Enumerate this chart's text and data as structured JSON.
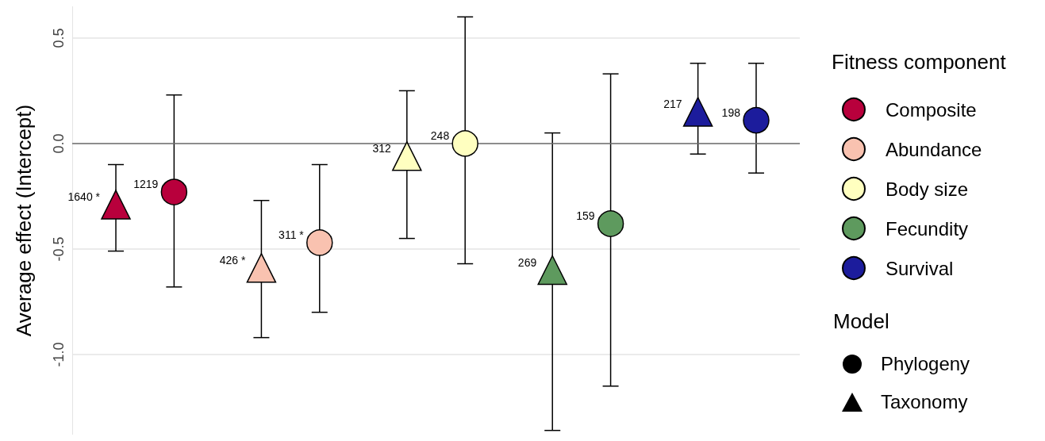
{
  "chart_data": {
    "type": "scatter",
    "ylabel": "Average effect (Intercept)",
    "legend_title": "Fitness component",
    "categories": [
      null,
      null,
      null,
      null,
      null
    ],
    "ylim": [
      -1.38,
      0.65
    ],
    "yticks": [
      {
        "value": -1,
        "label": "-1.0"
      },
      {
        "value": -0.5,
        "label": "-0.5"
      },
      {
        "value": 0,
        "label": "0.0"
      },
      {
        "value": 0.5,
        "label": "0.5"
      }
    ],
    "grid": "y",
    "tick_labels": "y",
    "legend": "right",
    "ref_lines": [
      {
        "axis": "y",
        "value": 0,
        "label": null,
        "color": "#6e6e6e"
      }
    ],
    "annotations": [
      "Model",
      "Phylogeny",
      "Taxonomy",
      "1640 *",
      "1219",
      "426 *",
      "311 *",
      "312",
      "248",
      "269",
      "159",
      "217",
      "198"
    ],
    "series": [
      {
        "marker": "triangle",
        "color": "#b8003c",
        "values": [
          -0.29,
          null,
          null,
          null,
          null
        ],
        "errors": [
          [
            -0.51,
            -0.1
          ],
          null,
          null,
          null,
          null
        ]
      },
      {
        "name": "Composite",
        "marker": "circle",
        "color": "#b8003c",
        "values": [
          -0.23,
          null,
          null,
          null,
          null
        ],
        "errors": [
          [
            -0.68,
            0.23
          ],
          null,
          null,
          null,
          null
        ]
      },
      {
        "marker": "triangle",
        "color": "#f9c2b0",
        "values": [
          null,
          -0.59,
          null,
          null,
          null
        ],
        "errors": [
          null,
          [
            -0.92,
            -0.27
          ],
          null,
          null,
          null
        ]
      },
      {
        "name": "Abundance",
        "marker": "circle",
        "color": "#f9c2b0",
        "values": [
          null,
          -0.47,
          null,
          null,
          null
        ],
        "errors": [
          null,
          [
            -0.8,
            -0.1
          ],
          null,
          null,
          null
        ]
      },
      {
        "marker": "triangle",
        "color": "#ffffc0",
        "values": [
          null,
          null,
          -0.06,
          null,
          null
        ],
        "errors": [
          null,
          null,
          [
            -0.45,
            0.25
          ],
          null,
          null
        ]
      },
      {
        "name": "Body size",
        "marker": "circle",
        "color": "#ffffc0",
        "values": [
          null,
          null,
          0.0,
          null,
          null
        ],
        "errors": [
          null,
          null,
          [
            -0.57,
            0.6
          ],
          null,
          null
        ]
      },
      {
        "marker": "triangle",
        "color": "#5e9a5e",
        "values": [
          null,
          null,
          null,
          -0.6,
          null
        ],
        "errors": [
          null,
          null,
          null,
          [
            -1.36,
            0.05
          ],
          null
        ]
      },
      {
        "name": "Fecundity",
        "marker": "circle",
        "color": "#5e9a5e",
        "values": [
          null,
          null,
          null,
          -0.38,
          null
        ],
        "errors": [
          null,
          null,
          null,
          [
            -1.15,
            0.33
          ],
          null
        ]
      },
      {
        "marker": "triangle",
        "color": "#1c1c9c",
        "values": [
          null,
          null,
          null,
          null,
          0.15
        ],
        "errors": [
          null,
          null,
          null,
          null,
          [
            -0.05,
            0.38
          ]
        ]
      },
      {
        "name": "Survival",
        "marker": "circle",
        "color": "#1c1c9c",
        "values": [
          null,
          null,
          null,
          null,
          0.11
        ],
        "errors": [
          null,
          null,
          null,
          null,
          [
            -0.14,
            0.38
          ]
        ]
      }
    ]
  }
}
